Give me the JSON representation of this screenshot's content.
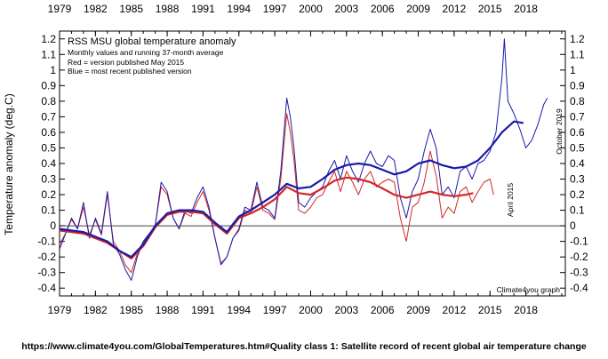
{
  "chart_data": {
    "type": "line",
    "title": "RSS MSU global temperature anomaly",
    "subtitle": "Monthly values and running 37-month average",
    "legend": {
      "red_label": "Red = version published May 2015",
      "blue_label": "Blue = most recent published version",
      "placement": "top-left"
    },
    "ylabel": "Temperature anomaly (deg.C)",
    "xlim": [
      1979,
      2021.3
    ],
    "ylim": [
      -0.45,
      1.25
    ],
    "x_ticks": [
      1979,
      1982,
      1985,
      1988,
      1991,
      1994,
      1997,
      2000,
      2003,
      2006,
      2009,
      2012,
      2015,
      2018
    ],
    "y_ticks": [
      -0.4,
      -0.3,
      -0.2,
      -0.1,
      0,
      0.1,
      0.2,
      0.3,
      0.4,
      0.5,
      0.6,
      0.7,
      0.8,
      0.9,
      1,
      1.1,
      1.2
    ],
    "annotations": {
      "red_end": "April 2015",
      "blue_end": "October 2019",
      "credit": "Climate4you graph"
    },
    "footer": "https://www.climate4you.com/GlobalTemperatures.htm#Quality class 1: Satellite record of recent global air temperature change",
    "colors": {
      "red": "#d22828",
      "blue": "#1a1aa8",
      "zero_line": "#000000"
    },
    "series": [
      {
        "name": "Blue = most recent published version (monthly)",
        "color": "#1a1aa8",
        "x": [
          1979.0,
          1979.5,
          1980.0,
          1980.5,
          1981.0,
          1981.5,
          1982.0,
          1982.5,
          1983.0,
          1983.5,
          1984.0,
          1984.5,
          1985.0,
          1985.5,
          1986.0,
          1986.5,
          1987.0,
          1987.5,
          1988.0,
          1988.5,
          1989.0,
          1989.5,
          1990.0,
          1990.5,
          1991.0,
          1991.5,
          1992.0,
          1992.5,
          1993.0,
          1993.5,
          1994.0,
          1994.5,
          1995.0,
          1995.5,
          1996.0,
          1996.5,
          1997.0,
          1997.5,
          1998.0,
          1998.3,
          1998.6,
          1999.0,
          1999.5,
          2000.0,
          2000.5,
          2001.0,
          2001.5,
          2002.0,
          2002.5,
          2003.0,
          2003.5,
          2004.0,
          2004.5,
          2005.0,
          2005.5,
          2006.0,
          2006.5,
          2007.0,
          2007.5,
          2008.0,
          2008.5,
          2009.0,
          2009.5,
          2010.0,
          2010.5,
          2011.0,
          2011.5,
          2012.0,
          2012.5,
          2013.0,
          2013.5,
          2014.0,
          2014.5,
          2015.0,
          2015.5,
          2016.0,
          2016.2,
          2016.5,
          2017.0,
          2017.5,
          2018.0,
          2018.5,
          2019.0,
          2019.5,
          2019.8
        ],
        "values": [
          -0.15,
          -0.05,
          0.05,
          -0.02,
          0.15,
          -0.08,
          0.05,
          -0.05,
          0.22,
          -0.12,
          -0.18,
          -0.28,
          -0.35,
          -0.2,
          -0.1,
          -0.05,
          0.0,
          0.28,
          0.22,
          0.05,
          -0.02,
          0.1,
          0.08,
          0.18,
          0.25,
          0.12,
          -0.08,
          -0.25,
          -0.2,
          -0.08,
          -0.02,
          0.12,
          0.1,
          0.28,
          0.12,
          0.1,
          0.05,
          0.35,
          0.82,
          0.7,
          0.5,
          0.15,
          0.12,
          0.18,
          0.22,
          0.25,
          0.35,
          0.42,
          0.3,
          0.45,
          0.35,
          0.28,
          0.4,
          0.48,
          0.4,
          0.38,
          0.45,
          0.42,
          0.18,
          0.05,
          0.22,
          0.3,
          0.48,
          0.62,
          0.5,
          0.2,
          0.25,
          0.18,
          0.35,
          0.38,
          0.3,
          0.4,
          0.42,
          0.48,
          0.6,
          0.95,
          1.2,
          0.8,
          0.72,
          0.62,
          0.5,
          0.55,
          0.65,
          0.78,
          0.82
        ]
      },
      {
        "name": "Red = version published May 2015 (monthly)",
        "color": "#d22828",
        "x": [
          1979.0,
          1979.5,
          1980.0,
          1980.5,
          1981.0,
          1981.5,
          1982.0,
          1982.5,
          1983.0,
          1983.5,
          1984.0,
          1984.5,
          1985.0,
          1985.5,
          1986.0,
          1986.5,
          1987.0,
          1987.5,
          1988.0,
          1988.5,
          1989.0,
          1989.5,
          1990.0,
          1990.5,
          1991.0,
          1991.5,
          1992.0,
          1992.5,
          1993.0,
          1993.5,
          1994.0,
          1994.5,
          1995.0,
          1995.5,
          1996.0,
          1996.5,
          1997.0,
          1997.5,
          1998.0,
          1998.3,
          1998.6,
          1999.0,
          1999.5,
          2000.0,
          2000.5,
          2001.0,
          2001.5,
          2002.0,
          2002.5,
          2003.0,
          2003.5,
          2004.0,
          2004.5,
          2005.0,
          2005.5,
          2006.0,
          2006.5,
          2007.0,
          2007.5,
          2008.0,
          2008.5,
          2009.0,
          2009.5,
          2010.0,
          2010.5,
          2011.0,
          2011.5,
          2012.0,
          2012.5,
          2013.0,
          2013.5,
          2014.0,
          2014.5,
          2015.0,
          2015.3
        ],
        "values": [
          -0.12,
          -0.05,
          0.04,
          -0.02,
          0.12,
          -0.06,
          0.04,
          -0.06,
          0.2,
          -0.1,
          -0.16,
          -0.25,
          -0.3,
          -0.18,
          -0.1,
          -0.06,
          0.0,
          0.25,
          0.2,
          0.05,
          -0.02,
          0.08,
          0.06,
          0.15,
          0.22,
          0.1,
          -0.08,
          -0.24,
          -0.2,
          -0.08,
          -0.03,
          0.1,
          0.08,
          0.25,
          0.1,
          0.08,
          0.04,
          0.3,
          0.72,
          0.6,
          0.42,
          0.1,
          0.08,
          0.12,
          0.18,
          0.2,
          0.28,
          0.35,
          0.22,
          0.35,
          0.28,
          0.2,
          0.3,
          0.35,
          0.25,
          0.28,
          0.3,
          0.28,
          0.05,
          -0.1,
          0.12,
          0.15,
          0.28,
          0.48,
          0.32,
          0.05,
          0.12,
          0.08,
          0.22,
          0.25,
          0.15,
          0.22,
          0.28,
          0.3,
          0.2
        ]
      },
      {
        "name": "Blue running 37-month average",
        "color": "#1a1aa8",
        "x": [
          1979.0,
          1980.0,
          1981.0,
          1982.0,
          1983.0,
          1984.0,
          1985.0,
          1986.0,
          1987.0,
          1988.0,
          1989.0,
          1990.0,
          1991.0,
          1992.0,
          1993.0,
          1994.0,
          1995.0,
          1996.0,
          1997.0,
          1998.0,
          1999.0,
          2000.0,
          2001.0,
          2002.0,
          2003.0,
          2004.0,
          2005.0,
          2006.0,
          2007.0,
          2008.0,
          2009.0,
          2010.0,
          2011.0,
          2012.0,
          2013.0,
          2014.0,
          2015.0,
          2016.0,
          2017.0,
          2017.8
        ],
        "values": [
          -0.02,
          -0.03,
          -0.04,
          -0.07,
          -0.1,
          -0.16,
          -0.2,
          -0.12,
          0.0,
          0.08,
          0.1,
          0.1,
          0.09,
          0.02,
          -0.04,
          0.06,
          0.1,
          0.15,
          0.2,
          0.27,
          0.24,
          0.25,
          0.3,
          0.36,
          0.39,
          0.4,
          0.39,
          0.36,
          0.33,
          0.35,
          0.4,
          0.42,
          0.39,
          0.37,
          0.38,
          0.42,
          0.5,
          0.6,
          0.67,
          0.66
        ]
      },
      {
        "name": "Red running 37-month average",
        "color": "#d22828",
        "x": [
          1979.0,
          1980.0,
          1981.0,
          1982.0,
          1983.0,
          1984.0,
          1985.0,
          1986.0,
          1987.0,
          1988.0,
          1989.0,
          1990.0,
          1991.0,
          1992.0,
          1993.0,
          1994.0,
          1995.0,
          1996.0,
          1997.0,
          1998.0,
          1999.0,
          2000.0,
          2001.0,
          2002.0,
          2003.0,
          2004.0,
          2005.0,
          2006.0,
          2007.0,
          2008.0,
          2009.0,
          2010.0,
          2011.0,
          2012.0,
          2013.0,
          2013.6
        ],
        "values": [
          -0.03,
          -0.04,
          -0.05,
          -0.08,
          -0.11,
          -0.16,
          -0.21,
          -0.13,
          -0.01,
          0.07,
          0.09,
          0.09,
          0.08,
          0.01,
          -0.05,
          0.05,
          0.08,
          0.12,
          0.17,
          0.25,
          0.21,
          0.2,
          0.24,
          0.29,
          0.31,
          0.3,
          0.28,
          0.24,
          0.2,
          0.18,
          0.2,
          0.22,
          0.2,
          0.19,
          0.2,
          0.21
        ]
      }
    ]
  }
}
